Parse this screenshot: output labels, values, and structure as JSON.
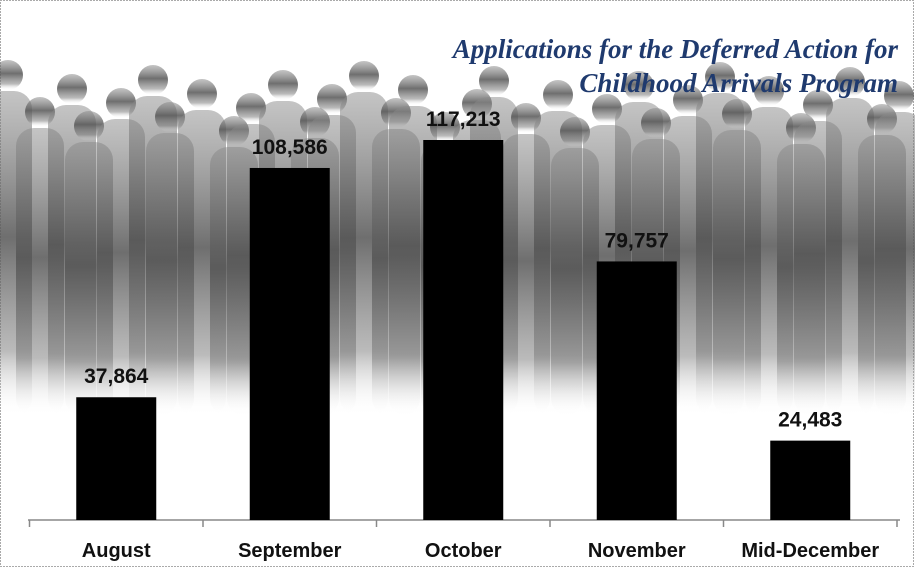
{
  "chart_data": {
    "type": "bar",
    "title": [
      "Applications for the Deferred Action for",
      "Childhood Arrivals Program"
    ],
    "categories": [
      "August",
      "September",
      "October",
      "November",
      "Mid-December"
    ],
    "values": [
      37864,
      108586,
      117213,
      79757,
      24483
    ],
    "value_labels": [
      "37,864",
      "108,586",
      "117,213",
      "79,757",
      "24,483"
    ],
    "color": "#000000"
  }
}
